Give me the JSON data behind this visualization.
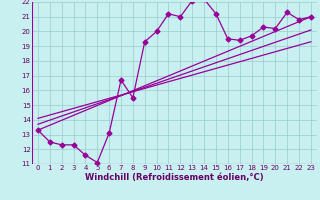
{
  "background_color": "#c8f0f0",
  "grid_color": "#99cccc",
  "line_color": "#990099",
  "xlabel": "Windchill (Refroidissement éolien,°C)",
  "xlim": [
    -0.5,
    23.5
  ],
  "ylim": [
    11,
    22
  ],
  "xticks": [
    0,
    1,
    2,
    3,
    4,
    5,
    6,
    7,
    8,
    9,
    10,
    11,
    12,
    13,
    14,
    15,
    16,
    17,
    18,
    19,
    20,
    21,
    22,
    23
  ],
  "yticks": [
    11,
    12,
    13,
    14,
    15,
    16,
    17,
    18,
    19,
    20,
    21,
    22
  ],
  "main_line_x": [
    0,
    1,
    2,
    3,
    4,
    5,
    6,
    7,
    8,
    9,
    10,
    11,
    12,
    13,
    14,
    15,
    16,
    17,
    18,
    19,
    20,
    21,
    22,
    23
  ],
  "main_line_y": [
    13.3,
    12.5,
    12.3,
    12.3,
    11.6,
    11.1,
    13.1,
    16.7,
    15.5,
    19.3,
    20.0,
    21.2,
    21.0,
    22.1,
    22.2,
    21.2,
    19.5,
    19.4,
    19.7,
    20.3,
    20.2,
    21.3,
    20.8,
    21.0
  ],
  "diag_line1_x": [
    0,
    23
  ],
  "diag_line1_y": [
    13.3,
    21.0
  ],
  "diag_line2_x": [
    0,
    23
  ],
  "diag_line2_y": [
    13.7,
    20.1
  ],
  "diag_line3_x": [
    0,
    23
  ],
  "diag_line3_y": [
    14.1,
    19.3
  ],
  "marker": "D",
  "markersize": 2.5,
  "linewidth": 0.9,
  "font_color": "#660066",
  "tick_labelsize": 5.0,
  "xlabel_fontsize": 6.0,
  "xlabel_fontweight": "bold"
}
